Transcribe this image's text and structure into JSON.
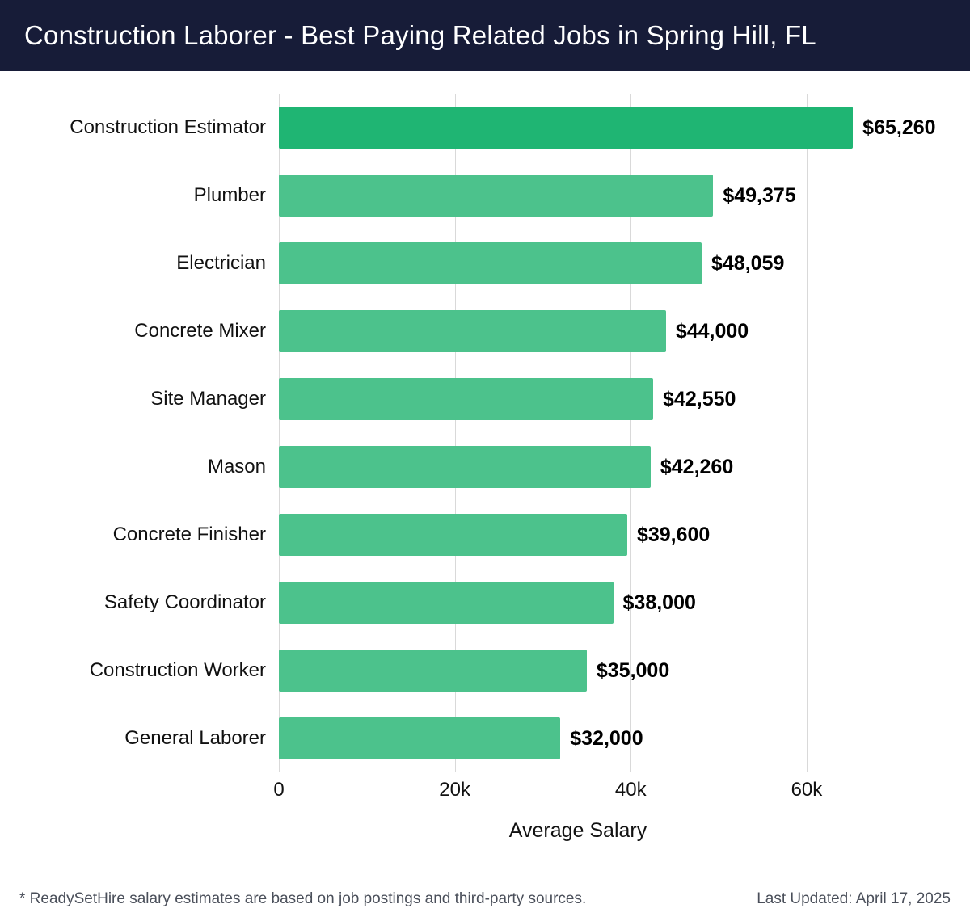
{
  "header": {
    "title": "Construction Laborer - Best Paying Related Jobs in Spring Hill, FL"
  },
  "chart_data": {
    "type": "bar",
    "orientation": "horizontal",
    "title": "Construction Laborer - Best Paying Related Jobs in Spring Hill, FL",
    "categories": [
      "Construction Estimator",
      "Plumber",
      "Electrician",
      "Concrete Mixer",
      "Site Manager",
      "Mason",
      "Concrete Finisher",
      "Safety Coordinator",
      "Construction Worker",
      "General Laborer"
    ],
    "values": [
      65260,
      49375,
      48059,
      44000,
      42550,
      42260,
      39600,
      38000,
      35000,
      32000
    ],
    "value_labels": [
      "$65,260",
      "$49,375",
      "$48,059",
      "$44,000",
      "$42,550",
      "$42,260",
      "$39,600",
      "$38,000",
      "$35,000",
      "$32,000"
    ],
    "xlabel": "Average Salary",
    "ylabel": "",
    "xlim": [
      0,
      68000
    ],
    "xticks": [
      0,
      20000,
      40000,
      60000
    ],
    "xtick_labels": [
      "0",
      "20k",
      "40k",
      "60k"
    ],
    "grid": true,
    "legend": "none",
    "highlight_index": 0,
    "colors": {
      "highlight_bar": "#1fb573",
      "default_bar": "#4cc28c",
      "gridline": "#d9d9d9",
      "header_bg": "#171c38",
      "header_text": "#ffffff",
      "value_text": "#000000"
    }
  },
  "footer": {
    "note": "* ReadySetHire salary estimates are based on job postings and third-party sources.",
    "last_updated": "Last Updated: April 17, 2025"
  }
}
